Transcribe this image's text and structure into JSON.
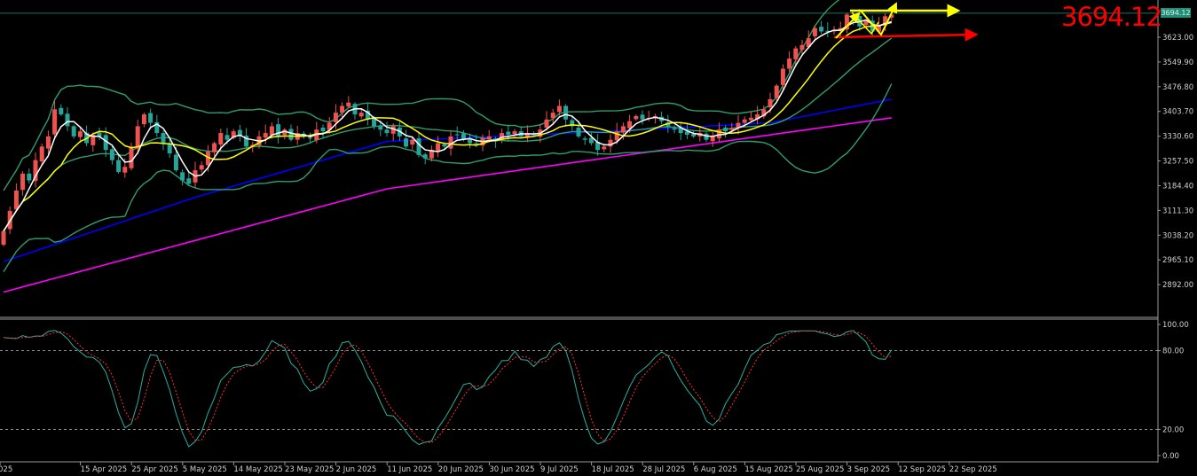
{
  "chart_data": [
    {
      "type": "candlestick",
      "panel": "price",
      "grid": false,
      "ylim": [
        2798,
        3733
      ],
      "y_ticks": [
        "3623.00",
        "3549.90",
        "3476.80",
        "3403.70",
        "3330.60",
        "3257.50",
        "3184.40",
        "3111.30",
        "3038.20",
        "2965.10",
        "2892.00"
      ],
      "x_ticks": [
        "025",
        "15 Apr 2025",
        "25 Apr 2025",
        "5 May 2025",
        "14 May 2025",
        "23 May 2025",
        "2 Jun 2025",
        "11 Jun 2025",
        "20 Jun 2025",
        "30 Jun 2025",
        "9 Jul 2025",
        "18 Jul 2025",
        "28 Jul 2025",
        "6 Aug 2025",
        "15 Aug 2025",
        "25 Aug 2025",
        "3 Sep 2025",
        "12 Sep 2025",
        "22 Sep 2025"
      ],
      "bars_per_x_tick": 8,
      "close": [
        3050,
        3110,
        3170,
        3220,
        3200,
        3260,
        3300,
        3330,
        3410,
        3395,
        3360,
        3330,
        3345,
        3310,
        3335,
        3330,
        3290,
        3260,
        3225,
        3240,
        3300,
        3360,
        3395,
        3370,
        3340,
        3310,
        3280,
        3230,
        3200,
        3190,
        3230,
        3245,
        3285,
        3310,
        3340,
        3320,
        3345,
        3330,
        3300,
        3305,
        3330,
        3340,
        3360,
        3330,
        3350,
        3320,
        3340,
        3330,
        3325,
        3350,
        3345,
        3370,
        3400,
        3420,
        3430,
        3395,
        3400,
        3380,
        3360,
        3350,
        3340,
        3360,
        3330,
        3300,
        3320,
        3275,
        3265,
        3290,
        3310,
        3300,
        3330,
        3335,
        3320,
        3310,
        3305,
        3325,
        3330,
        3315,
        3340,
        3335,
        3345,
        3330,
        3340,
        3335,
        3350,
        3380,
        3400,
        3420,
        3380,
        3360,
        3330,
        3320,
        3310,
        3290,
        3300,
        3320,
        3345,
        3360,
        3375,
        3390,
        3380,
        3385,
        3390,
        3375,
        3360,
        3350,
        3340,
        3335,
        3330,
        3340,
        3320,
        3330,
        3350,
        3345,
        3355,
        3370,
        3380,
        3385,
        3395,
        3410,
        3440,
        3480,
        3530,
        3560,
        3590,
        3600,
        3620,
        3650,
        3640,
        3640,
        3645,
        3650,
        3690,
        3680,
        3655,
        3670,
        3640,
        3660,
        3685,
        3690
      ],
      "current_price": "3694.12",
      "annotation_text": "3694.12",
      "colors": {
        "bull": "#ef5350",
        "bear": "#26a69a",
        "ma_fast": "#ffffff",
        "ma_slow": "#ffff00",
        "bollinger": "#2e9e6e",
        "ma_blue": "#0000ff",
        "ma_magenta": "#ff00ff",
        "price_line": "#1f6f60",
        "arrow_yellow": "#ffff00",
        "arrow_red": "#ff0000"
      },
      "ma_blue_anchors": [
        [
          0,
          2960
        ],
        [
          30,
          3150
        ],
        [
          60,
          3315
        ],
        [
          100,
          3350
        ],
        [
          120,
          3370
        ],
        [
          139,
          3440
        ]
      ],
      "ma_magenta_anchors": [
        [
          0,
          2870
        ],
        [
          60,
          3175
        ],
        [
          139,
          3385
        ]
      ]
    },
    {
      "type": "line",
      "panel": "stochastic",
      "ylim": [
        0,
        100
      ],
      "y_ticks": [
        "100.00",
        "80.00",
        "20.00",
        "0.00"
      ],
      "levels": [
        80,
        20
      ],
      "series_colors": {
        "main": "#2ab0a0",
        "signal": "#ff3030"
      }
    }
  ]
}
